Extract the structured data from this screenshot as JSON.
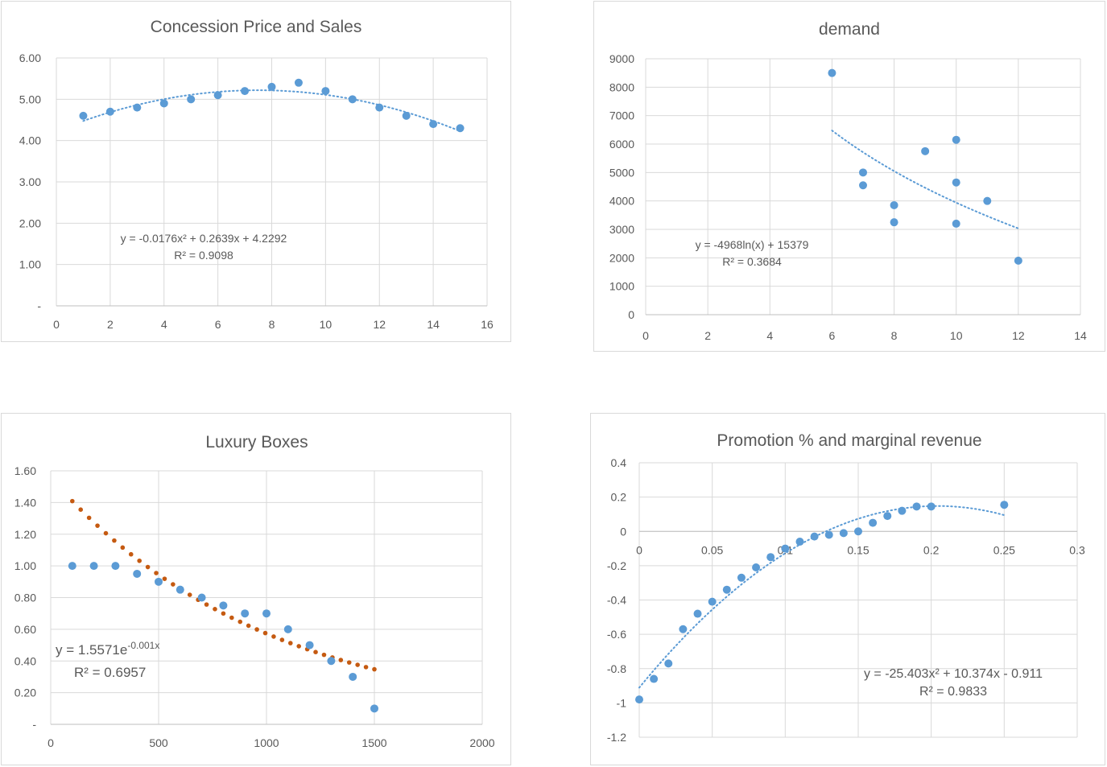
{
  "chart_data": [
    {
      "type": "scatter",
      "title": "Concession  Price and Sales",
      "xlim": [
        0,
        16
      ],
      "ylim": [
        0,
        6
      ],
      "xticks": [
        "0",
        "2",
        "4",
        "6",
        "8",
        "10",
        "12",
        "14",
        "16"
      ],
      "yticks": [
        "-",
        "1.00",
        "2.00",
        "3.00",
        "4.00",
        "5.00",
        "6.00"
      ],
      "grid": true,
      "series": [
        {
          "x": [
            1,
            2,
            3,
            4,
            5,
            6,
            7,
            8,
            9,
            10,
            11,
            12,
            13,
            14,
            15
          ],
          "y": [
            4.6,
            4.7,
            4.8,
            4.9,
            5.0,
            5.1,
            5.2,
            5.3,
            5.4,
            5.2,
            5.0,
            4.8,
            4.6,
            4.4,
            4.3
          ],
          "color": "#5b9bd5"
        }
      ],
      "trendline": {
        "kind": "polynomial",
        "coefficients": [
          -0.0176,
          0.2639,
          4.2292
        ],
        "range": [
          1,
          15
        ],
        "color": "#5b9bd5",
        "equation": "y = -0.0176x² + 0.2639x + 4.2292",
        "r2": "R² = 0.9098"
      }
    },
    {
      "type": "scatter",
      "title": "demand",
      "xlim": [
        0,
        14
      ],
      "ylim": [
        0,
        9000
      ],
      "xticks": [
        "0",
        "2",
        "4",
        "6",
        "8",
        "10",
        "12",
        "14"
      ],
      "yticks": [
        "0",
        "1000",
        "2000",
        "3000",
        "4000",
        "5000",
        "6000",
        "7000",
        "8000",
        "9000"
      ],
      "grid": true,
      "series": [
        {
          "x": [
            6,
            7,
            7,
            8,
            8,
            9,
            10,
            10,
            10,
            11,
            12
          ],
          "y": [
            8500,
            5000,
            4550,
            3850,
            3250,
            5750,
            6150,
            4650,
            3200,
            4000,
            1900
          ],
          "color": "#5b9bd5"
        }
      ],
      "trendline": {
        "kind": "logarithmic",
        "coefficients": [
          -4968,
          15379
        ],
        "range": [
          6,
          12
        ],
        "color": "#5b9bd5",
        "equation": "y = -4968ln(x) + 15379",
        "r2": "R² = 0.3684"
      }
    },
    {
      "type": "scatter",
      "title": "Luxury Boxes",
      "xlim": [
        0,
        2000
      ],
      "ylim": [
        0,
        1.6
      ],
      "xticks": [
        "0",
        "500",
        "1000",
        "1500",
        "2000"
      ],
      "yticks": [
        "-",
        "0.20",
        "0.40",
        "0.60",
        "0.80",
        "1.00",
        "1.20",
        "1.40",
        "1.60"
      ],
      "grid": true,
      "series": [
        {
          "x": [
            100,
            200,
            300,
            400,
            500,
            600,
            700,
            800,
            900,
            1000,
            1100,
            1200,
            1300,
            1400,
            1500
          ],
          "y": [
            1.0,
            1.0,
            1.0,
            0.95,
            0.9,
            0.85,
            0.8,
            0.75,
            0.7,
            0.7,
            0.6,
            0.5,
            0.4,
            0.3,
            0.1
          ],
          "color": "#5b9bd5"
        }
      ],
      "trendline": {
        "kind": "exponential",
        "coefficients": [
          1.5571,
          -0.001
        ],
        "range": [
          100,
          1500
        ],
        "color": "#c55a11",
        "equation": "y = 1.5571e",
        "equation_exp": "-0.001x",
        "r2": "R² = 0.6957"
      }
    },
    {
      "type": "scatter",
      "title": "Promotion % and marginal revenue",
      "xlim": [
        0,
        0.3
      ],
      "ylim": [
        -1.2,
        0.4
      ],
      "xticks": [
        "0",
        "0.05",
        "0.1",
        "0.15",
        "0.2",
        "0.25",
        "0.3"
      ],
      "yticks": [
        "-1.2",
        "-1",
        "-0.8",
        "-0.6",
        "-0.4",
        "-0.2",
        "0",
        "0.2",
        "0.4"
      ],
      "grid": true,
      "series": [
        {
          "x": [
            0,
            0.01,
            0.02,
            0.03,
            0.04,
            0.05,
            0.06,
            0.07,
            0.08,
            0.09,
            0.1,
            0.11,
            0.12,
            0.13,
            0.14,
            0.15,
            0.16,
            0.17,
            0.18,
            0.19,
            0.2,
            0.25
          ],
          "y": [
            -0.98,
            -0.86,
            -0.77,
            -0.57,
            -0.48,
            -0.41,
            -0.34,
            -0.27,
            -0.21,
            -0.15,
            -0.1,
            -0.06,
            -0.03,
            -0.02,
            -0.01,
            0.0,
            0.05,
            0.09,
            0.12,
            0.145,
            0.145,
            0.155
          ],
          "color": "#5b9bd5"
        }
      ],
      "trendline": {
        "kind": "polynomial",
        "coefficients": [
          -25.403,
          10.374,
          -0.911
        ],
        "range": [
          0,
          0.25
        ],
        "color": "#5b9bd5",
        "equation": "y = -25.403x² + 10.374x - 0.911",
        "r2": "R² = 0.9833"
      }
    }
  ]
}
